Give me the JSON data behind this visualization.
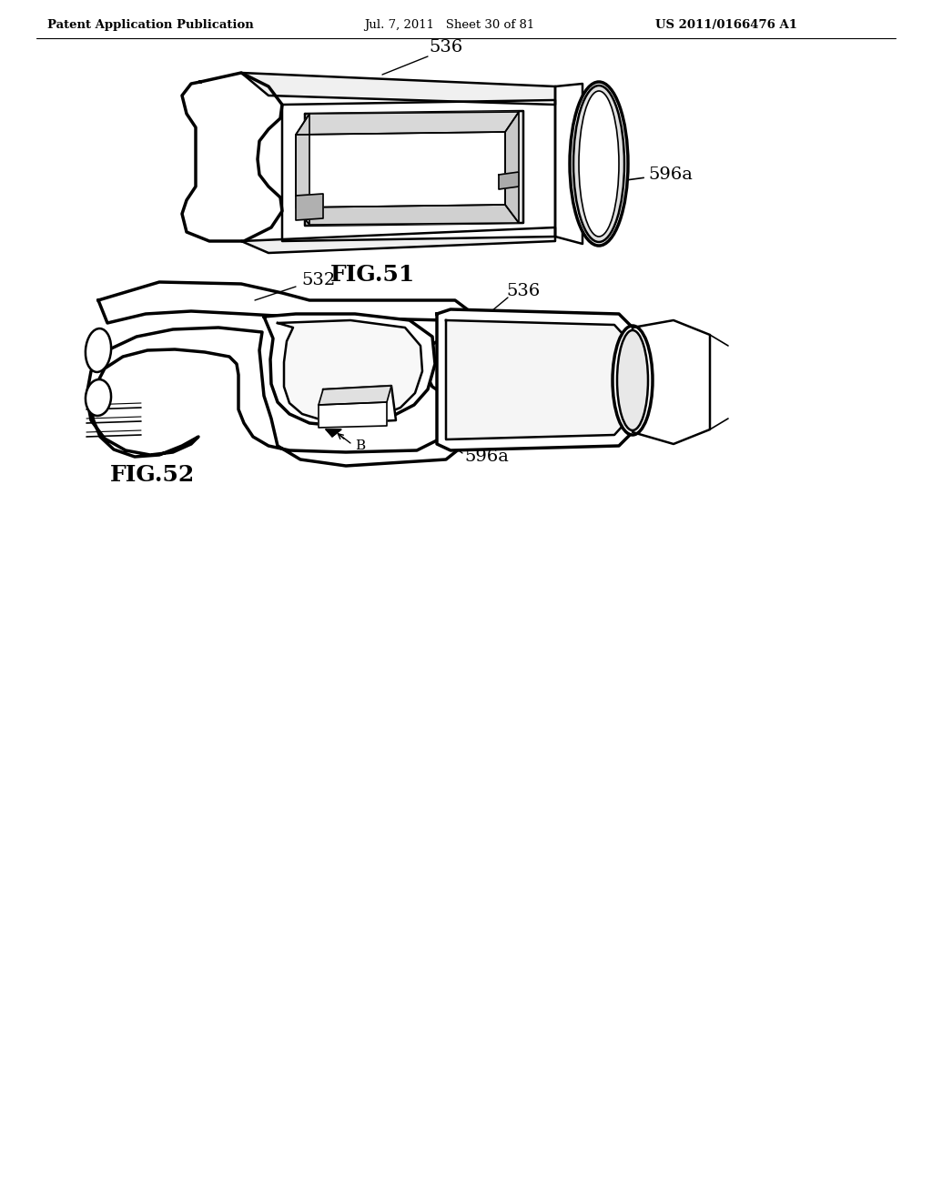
{
  "bg_color": "#ffffff",
  "line_color": "#000000",
  "header_left": "Patent Application Publication",
  "header_mid": "Jul. 7, 2011   Sheet 30 of 81",
  "header_right": "US 2011/0166476 A1",
  "fig51_label": "FIG.51",
  "fig52_label": "FIG.52",
  "label_536_fig51": "536",
  "label_596a_fig51": "596a",
  "label_532_fig52": "532",
  "label_536_fig52": "536",
  "label_596a_fig52": "596a",
  "label_B_fig52": "B",
  "header_fontsize": 9.5,
  "fig_label_fontsize": 18,
  "annotation_fontsize": 14
}
